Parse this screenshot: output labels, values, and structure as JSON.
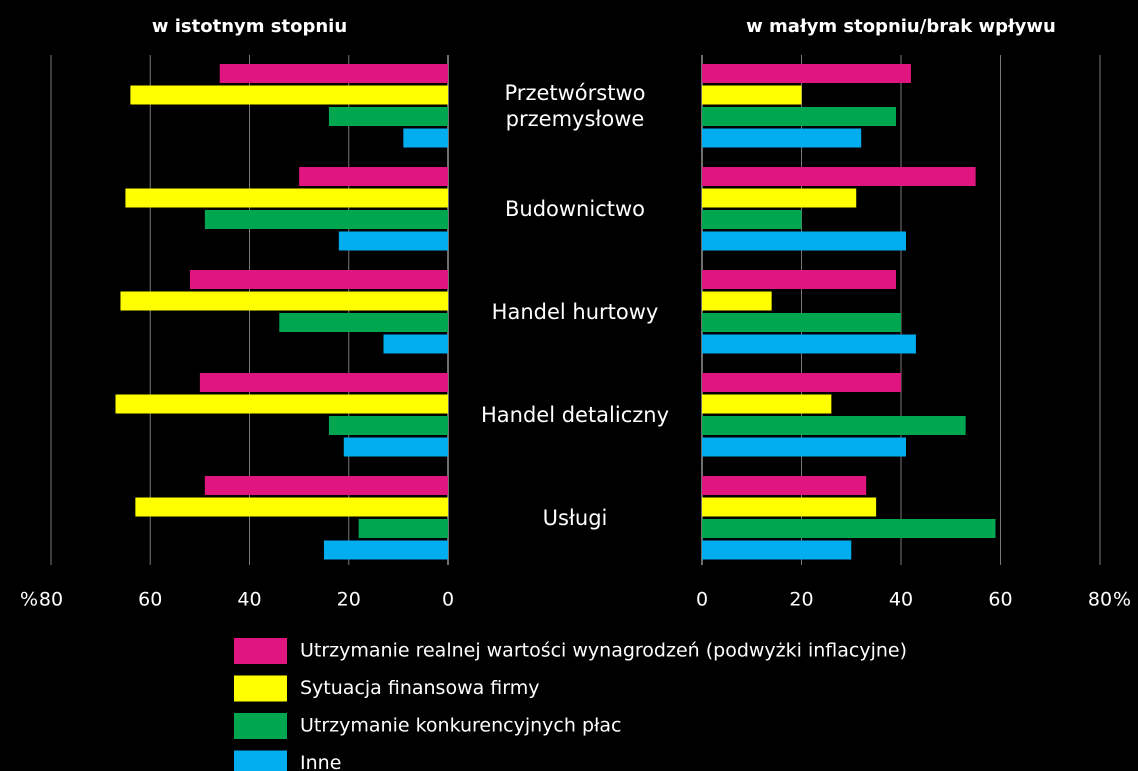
{
  "chart_data": [
    {
      "type": "bar",
      "orientation": "horizontal",
      "title": "w istotnym stopniu",
      "xlabel": "%",
      "xaxis_reversed": true,
      "xlim": [
        0,
        80
      ],
      "xticks": [
        0,
        20,
        40,
        60,
        80
      ],
      "grid": true,
      "categories": [
        "Przetwórstwo przemysłowe",
        "Budownictwo",
        "Handel hurtowy",
        "Handel detaliczny",
        "Usługi"
      ],
      "series": [
        {
          "name": "Utrzymanie realnej wartości wynagrodzeń (podwyżki inflacyjne)",
          "color": "#e0157f",
          "values": [
            46,
            30,
            52,
            50,
            49
          ]
        },
        {
          "name": "Sytuacja finansowa firmy",
          "color": "#ffff00",
          "values": [
            64,
            65,
            66,
            67,
            63
          ]
        },
        {
          "name": "Utrzymanie konkurencyjnych płac",
          "color": "#00a650",
          "values": [
            24,
            49,
            34,
            24,
            18
          ]
        },
        {
          "name": "Inne",
          "color": "#00aeef",
          "values": [
            9,
            22,
            13,
            21,
            25
          ]
        }
      ]
    },
    {
      "type": "bar",
      "orientation": "horizontal",
      "title": "w małym stopniu/brak wpływu",
      "xlabel": "%",
      "xaxis_reversed": false,
      "xlim": [
        0,
        80
      ],
      "xticks": [
        0,
        20,
        40,
        60,
        80
      ],
      "grid": true,
      "series": [
        {
          "color": "#e0157f",
          "values": [
            42,
            55,
            39,
            40,
            33
          ]
        },
        {
          "color": "#ffff00",
          "values": [
            20,
            31,
            14,
            26,
            35
          ]
        },
        {
          "color": "#00a650",
          "values": [
            39,
            20,
            40,
            53,
            59
          ]
        },
        {
          "color": "#00aeef",
          "values": [
            32,
            41,
            43,
            41,
            30
          ]
        }
      ]
    }
  ]
}
